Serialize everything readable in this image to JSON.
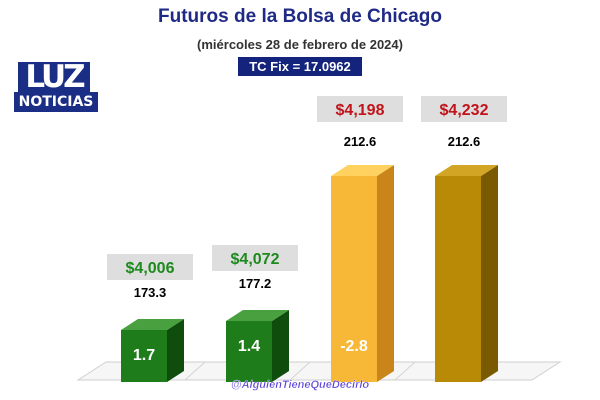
{
  "title": "Futuros de la Bolsa de Chicago",
  "subtitle": "(miércoles 28 de febrero de 2024)",
  "tc_fix": "TC Fix = 17.0962",
  "logo": {
    "top": "LUZ",
    "bottom": "NOTICIAS"
  },
  "watermark": "@AlguienTieneQueDecirlo",
  "colors": {
    "green_face": "#1e7d1a",
    "green_side": "#0f4d0c",
    "green_top": "#49a03e",
    "yellow_face": "#f7b737",
    "yellow_side": "#c9851a",
    "yellow_top": "#ffd15e",
    "olive_face": "#b88a06",
    "olive_side": "#7a5a00",
    "olive_top": "#d2a624",
    "price_green": "#1d8a1d",
    "price_red": "#c0141a",
    "price_box": "#dedede"
  },
  "chart_data": {
    "type": "bar",
    "title": "Futuros de la Bolsa de Chicago",
    "subtitle": "(miércoles 28 de febrero de 2024)",
    "categories": [
      "",
      "",
      "",
      ""
    ],
    "series": [
      {
        "values": [
          173.3,
          177.2,
          212.6,
          212.6
        ],
        "bar_labels": [
          "1.7",
          "1.4",
          "-2.8",
          ""
        ],
        "price_labels": [
          "$4,006",
          "$4,072",
          "$4,198",
          "$4,232"
        ],
        "colors": [
          "green",
          "green",
          "yellow",
          "olive"
        ],
        "price_colors": [
          "green",
          "green",
          "red",
          "red"
        ]
      }
    ],
    "ylim": [
      140,
      220
    ],
    "grid": false,
    "legend": "none"
  }
}
